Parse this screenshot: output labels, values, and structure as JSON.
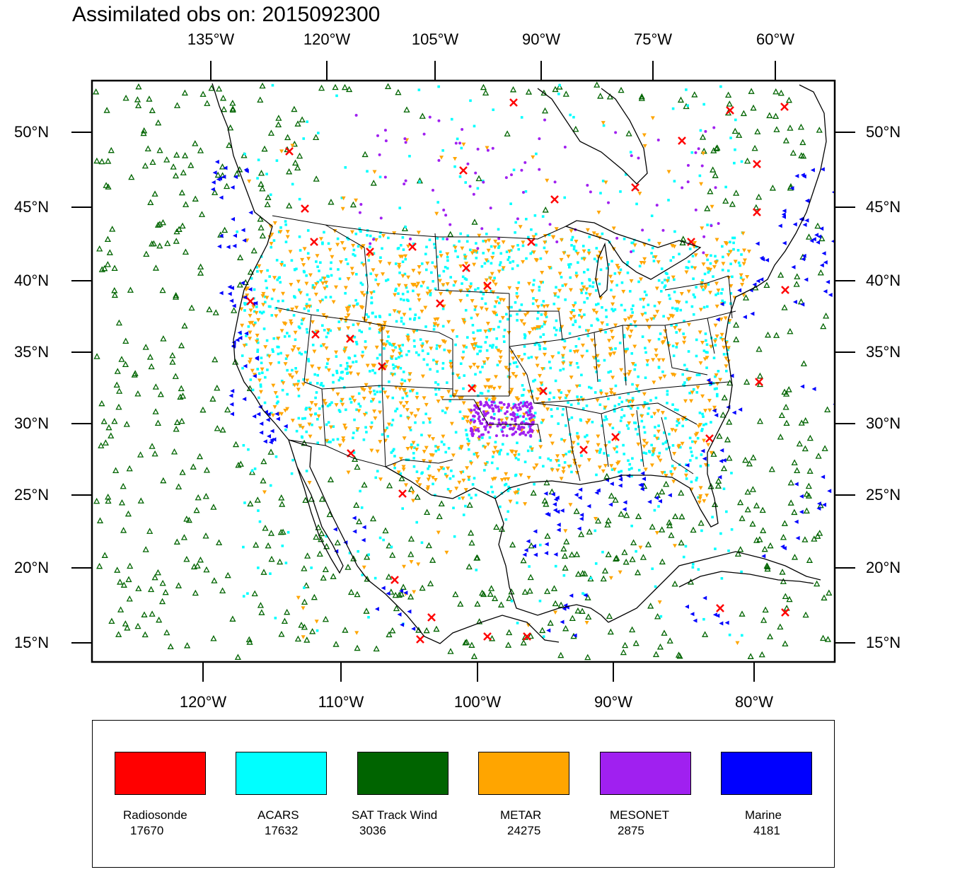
{
  "title": "Assimilated obs on: 2015092300",
  "top_lon_ticks": [
    "135°W",
    "120°W",
    "105°W",
    "90°W",
    "75°W",
    "60°W"
  ],
  "bottom_lon_ticks": [
    "120°W",
    "110°W",
    "100°W",
    "90°W",
    "80°W"
  ],
  "lat_ticks": [
    "50°N",
    "45°N",
    "40°N",
    "35°N",
    "30°N",
    "25°N",
    "20°N",
    "15°N"
  ],
  "legend": [
    {
      "name": "Radiosonde",
      "count": "17670",
      "color": "#ff0000"
    },
    {
      "name": "ACARS",
      "count": "17632",
      "color": "#00ffff"
    },
    {
      "name": "SAT Track Wind",
      "count": "3036",
      "color": "#006400"
    },
    {
      "name": "METAR",
      "count": "24275",
      "color": "#ffa500"
    },
    {
      "name": "MESONET",
      "count": "2875",
      "color": "#a020f0"
    },
    {
      "name": "Marine",
      "count": "4181",
      "color": "#0000ff"
    }
  ],
  "map_extent": {
    "lon_min": -128,
    "lon_max": -74,
    "lat_min": 14,
    "lat_max": 54
  }
}
